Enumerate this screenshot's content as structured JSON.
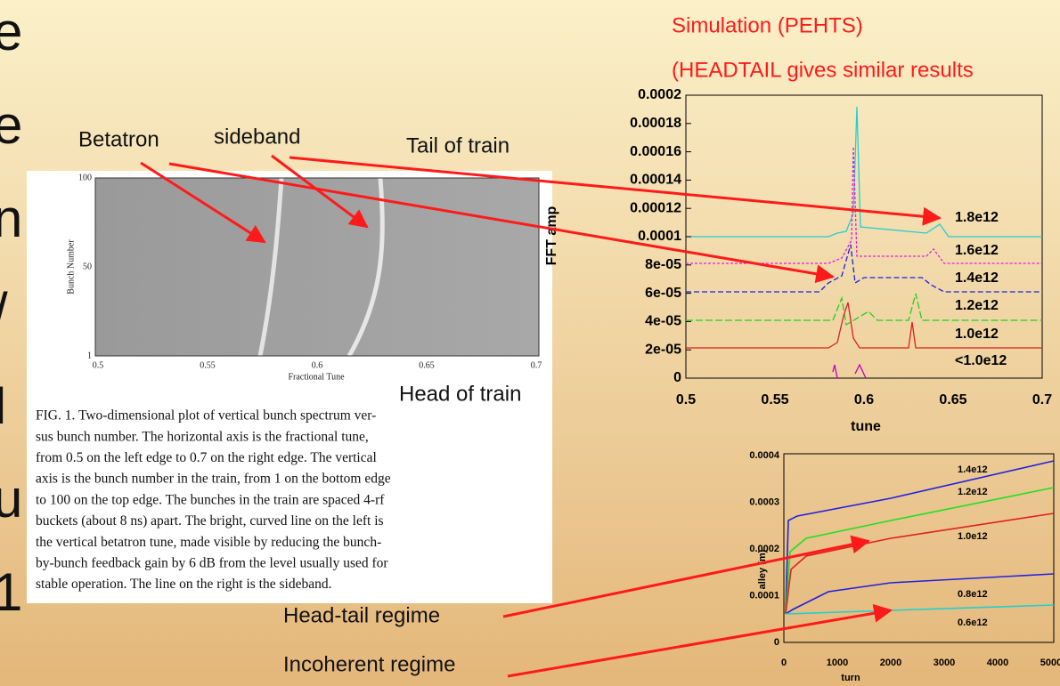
{
  "slide_edge_fragments": [
    "e",
    "e",
    "n",
    "/",
    "I",
    "u",
    "1"
  ],
  "simulation": {
    "title": "Simulation (PEHTS)",
    "subtitle": "(HEADTAIL gives similar results"
  },
  "annotations": {
    "betatron": "Betatron",
    "sideband": "sideband",
    "tail": "Tail of train",
    "head": "Head of train",
    "head_tail": "Head-tail regime",
    "incoherent": "Incoherent regime"
  },
  "figure": {
    "y_label": "Bunch Number",
    "x_label": "Fractional Tune",
    "yticks": [
      "100",
      "50",
      "1"
    ],
    "xticks": [
      "0.5",
      "0.55",
      "0.6",
      "0.65",
      "0.7"
    ],
    "caption": [
      "FIG. 1.    Two-dimensional plot of vertical bunch spectrum ver-",
      "sus bunch number. The horizontal axis is the fractional tune,",
      "from 0.5 on the left edge to 0.7 on the right edge. The vertical",
      "axis is the bunch number in the train, from 1 on the bottom edge",
      "to 100 on the top edge. The bunches in the train are spaced 4-rf",
      "buckets (about 8 ns) apart. The bright, curved line on the left is",
      "the vertical betatron tune, made visible by reducing the bunch-",
      "by-bunch feedback gain by 6 dB from the level usually used for",
      "stable operation. The line on the right is the sideband."
    ]
  },
  "fft_plot": {
    "y_label": "FFT amp",
    "x_label": "tune",
    "yticks": [
      "0",
      "2e-05",
      "4e-05",
      "6e-05",
      "8e-05",
      "0.0001",
      "0.00012",
      "0.00014",
      "0.00016",
      "0.00018",
      "0.0002"
    ],
    "xticks": [
      "0.5",
      "0.55",
      "0.6",
      "0.65",
      "0.7"
    ],
    "series_labels": [
      "1.8e12",
      "1.6e12",
      "1.4e12",
      "1.2e12",
      "1.0e12",
      "<1.0e12"
    ]
  },
  "growth_plot": {
    "y_label": "alley (m)",
    "x_label": "turn",
    "yticks": [
      "0",
      "0.0001",
      "0.0002",
      "0.0003",
      "0.0004"
    ],
    "xticks": [
      "0",
      "1000",
      "2000",
      "3000",
      "4000",
      "5000"
    ],
    "series_labels": [
      "1.4e12",
      "1.2e12",
      "1.0e12",
      "0.8e12",
      "0.6e12"
    ]
  }
}
